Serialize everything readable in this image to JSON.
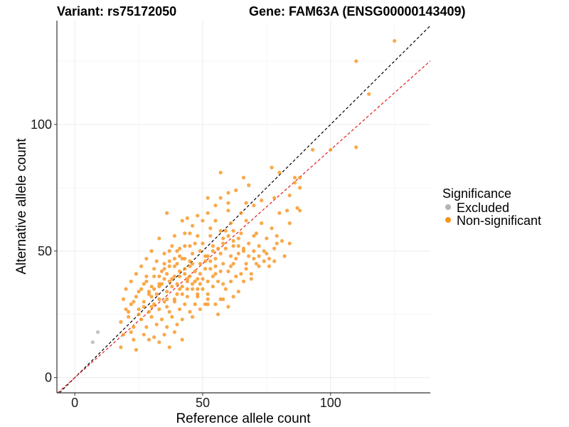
{
  "header": {
    "variant_title": "Variant: rs75172050",
    "gene_title": "Gene: FAM63A (ENSG00000143409)"
  },
  "legend": {
    "title": "Significance",
    "items": [
      {
        "label": "Excluded",
        "color": "#b3b3b3"
      },
      {
        "label": "Non-significant",
        "color": "#f7941d"
      }
    ]
  },
  "chart_data": {
    "type": "scatter",
    "title": "Variant: rs75172050    Gene: FAM63A (ENSG00000143409)",
    "xlabel": "Reference allele count",
    "ylabel": "Alternative allele count",
    "xlim": [
      -7,
      139
    ],
    "ylim": [
      -6,
      141
    ],
    "xticks": [
      0,
      50,
      100
    ],
    "yticks": [
      0,
      50,
      100
    ],
    "grid": true,
    "legend_position": "right",
    "reference_lines": [
      {
        "slope": 1,
        "intercept": 0,
        "color": "#000000",
        "style": "dashed"
      },
      {
        "slope": 0.9,
        "intercept": 0,
        "color": "#e41a1c",
        "style": "dashed"
      }
    ],
    "series": [
      {
        "name": "Excluded",
        "color": "#b3b3b3",
        "points": [
          [
            7,
            14
          ],
          [
            9,
            18
          ]
        ]
      },
      {
        "name": "Non-significant",
        "color": "#f7941d",
        "points": [
          [
            125,
            133
          ],
          [
            110,
            125
          ],
          [
            115,
            112
          ],
          [
            110,
            91
          ],
          [
            100,
            90
          ],
          [
            93,
            90
          ],
          [
            57,
            81
          ],
          [
            66,
            79
          ],
          [
            77,
            83
          ],
          [
            86,
            79
          ],
          [
            88,
            79
          ],
          [
            80,
            81
          ],
          [
            68,
            76
          ],
          [
            63,
            74
          ],
          [
            60,
            73
          ],
          [
            52,
            71
          ],
          [
            57,
            71
          ],
          [
            78,
            71
          ],
          [
            84,
            72
          ],
          [
            86,
            77
          ],
          [
            88,
            75
          ],
          [
            73,
            70
          ],
          [
            70,
            68
          ],
          [
            67,
            69
          ],
          [
            60,
            69
          ],
          [
            55,
            68
          ],
          [
            52,
            65
          ],
          [
            65,
            65
          ],
          [
            80,
            65
          ],
          [
            83,
            66
          ],
          [
            88,
            66
          ],
          [
            60,
            66
          ],
          [
            48,
            64
          ],
          [
            44,
            63
          ],
          [
            50,
            62
          ],
          [
            36,
            65
          ],
          [
            42,
            62
          ],
          [
            46,
            60
          ],
          [
            55,
            62
          ],
          [
            61,
            61
          ],
          [
            67,
            62
          ],
          [
            73,
            61
          ],
          [
            77,
            59
          ],
          [
            84,
            61
          ],
          [
            87,
            67
          ],
          [
            53,
            59
          ],
          [
            57,
            58
          ],
          [
            59,
            58
          ],
          [
            62,
            58
          ],
          [
            65,
            57
          ],
          [
            45,
            57
          ],
          [
            48,
            56
          ],
          [
            53,
            56
          ],
          [
            39,
            56
          ],
          [
            43,
            57
          ],
          [
            75,
            55
          ],
          [
            79,
            56
          ],
          [
            81,
            54
          ],
          [
            70,
            56
          ],
          [
            33,
            55
          ],
          [
            38,
            52
          ],
          [
            41,
            51
          ],
          [
            45,
            52
          ],
          [
            50,
            53
          ],
          [
            54,
            52
          ],
          [
            58,
            53
          ],
          [
            62,
            52
          ],
          [
            66,
            51
          ],
          [
            72,
            52
          ],
          [
            78,
            51
          ],
          [
            84,
            53
          ],
          [
            30,
            50
          ],
          [
            35,
            49
          ],
          [
            40,
            50
          ],
          [
            46,
            49
          ],
          [
            51,
            48
          ],
          [
            57,
            49
          ],
          [
            61,
            48
          ],
          [
            64,
            49
          ],
          [
            70,
            47
          ],
          [
            75,
            49
          ],
          [
            82,
            48
          ],
          [
            28,
            47
          ],
          [
            32,
            46
          ],
          [
            37,
            46
          ],
          [
            42,
            47
          ],
          [
            45,
            46
          ],
          [
            49,
            45
          ],
          [
            53,
            46
          ],
          [
            58,
            45
          ],
          [
            62,
            45
          ],
          [
            67,
            45
          ],
          [
            72,
            44
          ],
          [
            26,
            44
          ],
          [
            31,
            43
          ],
          [
            35,
            43
          ],
          [
            39,
            44
          ],
          [
            43,
            43
          ],
          [
            47,
            42
          ],
          [
            51,
            43
          ],
          [
            55,
            41
          ],
          [
            60,
            42
          ],
          [
            65,
            41
          ],
          [
            69,
            41
          ],
          [
            24,
            41
          ],
          [
            28,
            40
          ],
          [
            33,
            40
          ],
          [
            36,
            41
          ],
          [
            41,
            40
          ],
          [
            44,
            39
          ],
          [
            48,
            39
          ],
          [
            52,
            38
          ],
          [
            56,
            38
          ],
          [
            61,
            38
          ],
          [
            66,
            38
          ],
          [
            22,
            38
          ],
          [
            27,
            37
          ],
          [
            30,
            36
          ],
          [
            34,
            37
          ],
          [
            38,
            36
          ],
          [
            42,
            36
          ],
          [
            46,
            35
          ],
          [
            50,
            35
          ],
          [
            54,
            36
          ],
          [
            59,
            35
          ],
          [
            64,
            34
          ],
          [
            20,
            35
          ],
          [
            25,
            34
          ],
          [
            29,
            33
          ],
          [
            32,
            33
          ],
          [
            36,
            34
          ],
          [
            40,
            33
          ],
          [
            44,
            32
          ],
          [
            48,
            32
          ],
          [
            52,
            33
          ],
          [
            57,
            31
          ],
          [
            62,
            32
          ],
          [
            19,
            31
          ],
          [
            23,
            30
          ],
          [
            27,
            30
          ],
          [
            31,
            29
          ],
          [
            35,
            30
          ],
          [
            39,
            30
          ],
          [
            43,
            29
          ],
          [
            47,
            29
          ],
          [
            51,
            29
          ],
          [
            55,
            29
          ],
          [
            58,
            31
          ],
          [
            20,
            27
          ],
          [
            25,
            27
          ],
          [
            29,
            26
          ],
          [
            33,
            27
          ],
          [
            37,
            26
          ],
          [
            41,
            27
          ],
          [
            45,
            26
          ],
          [
            49,
            27
          ],
          [
            21,
            24
          ],
          [
            26,
            23
          ],
          [
            30,
            24
          ],
          [
            34,
            23
          ],
          [
            38,
            24
          ],
          [
            42,
            23
          ],
          [
            46,
            24
          ],
          [
            23,
            20
          ],
          [
            28,
            20
          ],
          [
            32,
            21
          ],
          [
            36,
            20
          ],
          [
            40,
            21
          ],
          [
            19,
            17
          ],
          [
            22,
            18
          ],
          [
            27,
            17
          ],
          [
            31,
            16
          ],
          [
            35,
            17
          ],
          [
            39,
            18
          ],
          [
            18,
            12
          ],
          [
            24,
            11
          ],
          [
            29,
            15
          ],
          [
            33,
            14
          ],
          [
            37,
            12
          ],
          [
            42,
            15
          ],
          [
            58,
            37
          ],
          [
            63,
            40
          ],
          [
            67,
            43
          ],
          [
            69,
            39
          ],
          [
            71,
            45
          ],
          [
            74,
            50
          ],
          [
            76,
            47
          ],
          [
            79,
            53
          ],
          [
            71,
            57
          ],
          [
            68,
            53
          ],
          [
            64,
            55
          ],
          [
            59,
            51
          ],
          [
            55,
            47
          ],
          [
            53,
            43
          ],
          [
            49,
            41
          ],
          [
            46,
            45
          ],
          [
            43,
            47
          ],
          [
            40,
            45
          ],
          [
            37,
            44
          ],
          [
            34,
            42
          ],
          [
            31,
            40
          ],
          [
            28,
            38
          ],
          [
            26,
            35
          ],
          [
            24,
            32
          ],
          [
            22,
            29
          ],
          [
            21,
            26
          ],
          [
            18,
            22
          ],
          [
            23,
            15
          ],
          [
            60,
            28
          ],
          [
            56,
            25
          ],
          [
            52,
            29
          ],
          [
            48,
            35
          ],
          [
            44,
            38
          ],
          [
            41,
            35
          ],
          [
            38,
            39
          ],
          [
            36,
            31
          ],
          [
            33,
            36
          ],
          [
            30,
            32
          ],
          [
            27,
            28
          ],
          [
            25,
            25
          ],
          [
            45,
            40
          ],
          [
            47,
            38
          ],
          [
            49,
            37
          ],
          [
            43,
            41
          ],
          [
            41,
            42
          ],
          [
            39,
            40
          ],
          [
            37,
            38
          ],
          [
            35,
            39
          ],
          [
            33,
            37
          ],
          [
            31,
            35
          ],
          [
            29,
            34
          ],
          [
            52,
            48
          ],
          [
            54,
            50
          ],
          [
            56,
            51
          ],
          [
            58,
            55
          ],
          [
            60,
            56
          ],
          [
            62,
            54
          ],
          [
            64,
            52
          ],
          [
            66,
            50
          ],
          [
            68,
            48
          ],
          [
            70,
            50
          ],
          [
            72,
            48
          ],
          [
            74,
            46
          ],
          [
            76,
            44
          ],
          [
            78,
            46
          ],
          [
            63,
            47
          ],
          [
            61,
            44
          ],
          [
            57,
            42
          ],
          [
            54,
            40
          ],
          [
            50,
            39
          ],
          [
            46,
            37
          ],
          [
            42,
            33
          ],
          [
            39,
            31
          ],
          [
            36,
            28
          ],
          [
            33,
            31
          ],
          [
            30,
            28
          ],
          [
            40,
            37
          ],
          [
            44,
            35
          ],
          [
            48,
            33
          ],
          [
            52,
            31
          ],
          [
            43,
            52
          ],
          [
            47,
            53
          ],
          [
            41,
            48
          ],
          [
            45,
            44
          ],
          [
            49,
            50
          ],
          [
            51,
            46
          ],
          [
            55,
            44
          ],
          [
            39,
            47
          ],
          [
            35,
            45
          ],
          [
            37,
            50
          ]
        ]
      }
    ]
  }
}
